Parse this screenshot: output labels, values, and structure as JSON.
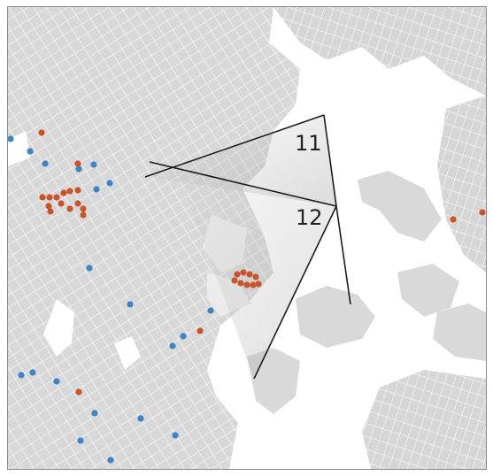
{
  "map": {
    "view_labels": [
      "11",
      "12"
    ],
    "colors": {
      "land": "#d9d9d9",
      "streets": "#f5f5f5",
      "water": "#ffffff",
      "border": "#8a8a8a",
      "sightlines": "#1c1c1c",
      "blue_marker": "#3d85c6",
      "orange_marker": "#c8542a"
    },
    "icons": {
      "blue": "blue-dot-icon",
      "orange": "orange-dot-icon"
    }
  }
}
